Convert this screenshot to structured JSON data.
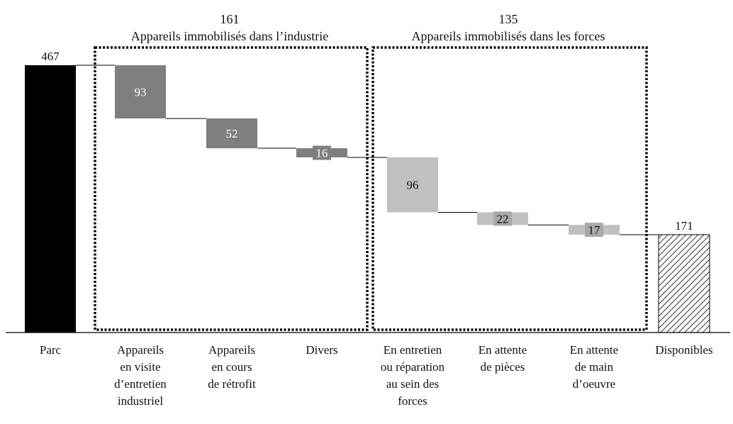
{
  "chart_data": {
    "type": "bar",
    "subtype": "waterfall",
    "categories": [
      "Parc",
      "Appareils en visite d'entretien industriel",
      "Appareils en cours de rétrofit",
      "Divers",
      "En entretien ou réparation au sein des forces",
      "En attente de pièces",
      "En attente de main d'oeuvre",
      "Disponibles"
    ],
    "category_lines": [
      [
        "Parc"
      ],
      [
        "Appareils",
        "en visite",
        "d’entretien",
        "industriel"
      ],
      [
        "Appareils",
        "en cours",
        "de rétrofit"
      ],
      [
        "Divers"
      ],
      [
        "En entretien",
        "ou réparation",
        "au sein des",
        "forces"
      ],
      [
        "En attente",
        "de pièces"
      ],
      [
        "En attente",
        "de main",
        "d’oeuvre"
      ],
      [
        "Disponibles"
      ]
    ],
    "values": [
      467,
      -93,
      -52,
      -16,
      -96,
      -22,
      -17,
      171
    ],
    "value_labels": [
      "467",
      "93",
      "52",
      "16",
      "96",
      "22",
      "17",
      "171"
    ],
    "kinds": [
      "total",
      "industry",
      "industry",
      "industry",
      "forces",
      "forces",
      "forces",
      "total-hatched"
    ],
    "groups": [
      {
        "total": "161",
        "title": "Appareils immobilisés dans l’industrie",
        "from": 1,
        "to": 3
      },
      {
        "total": "135",
        "title": "Appareils immobilisés dans  les forces",
        "from": 4,
        "to": 6
      }
    ],
    "ylim": [
      0,
      467
    ],
    "colors": {
      "total": "#000000",
      "industry": "#7f7f7f",
      "forces": "#c0c0c0",
      "hatch": "#000000",
      "label_on_dark": "#ffffff",
      "label_on_light": "#111111"
    },
    "grid": false,
    "legend": "none"
  }
}
